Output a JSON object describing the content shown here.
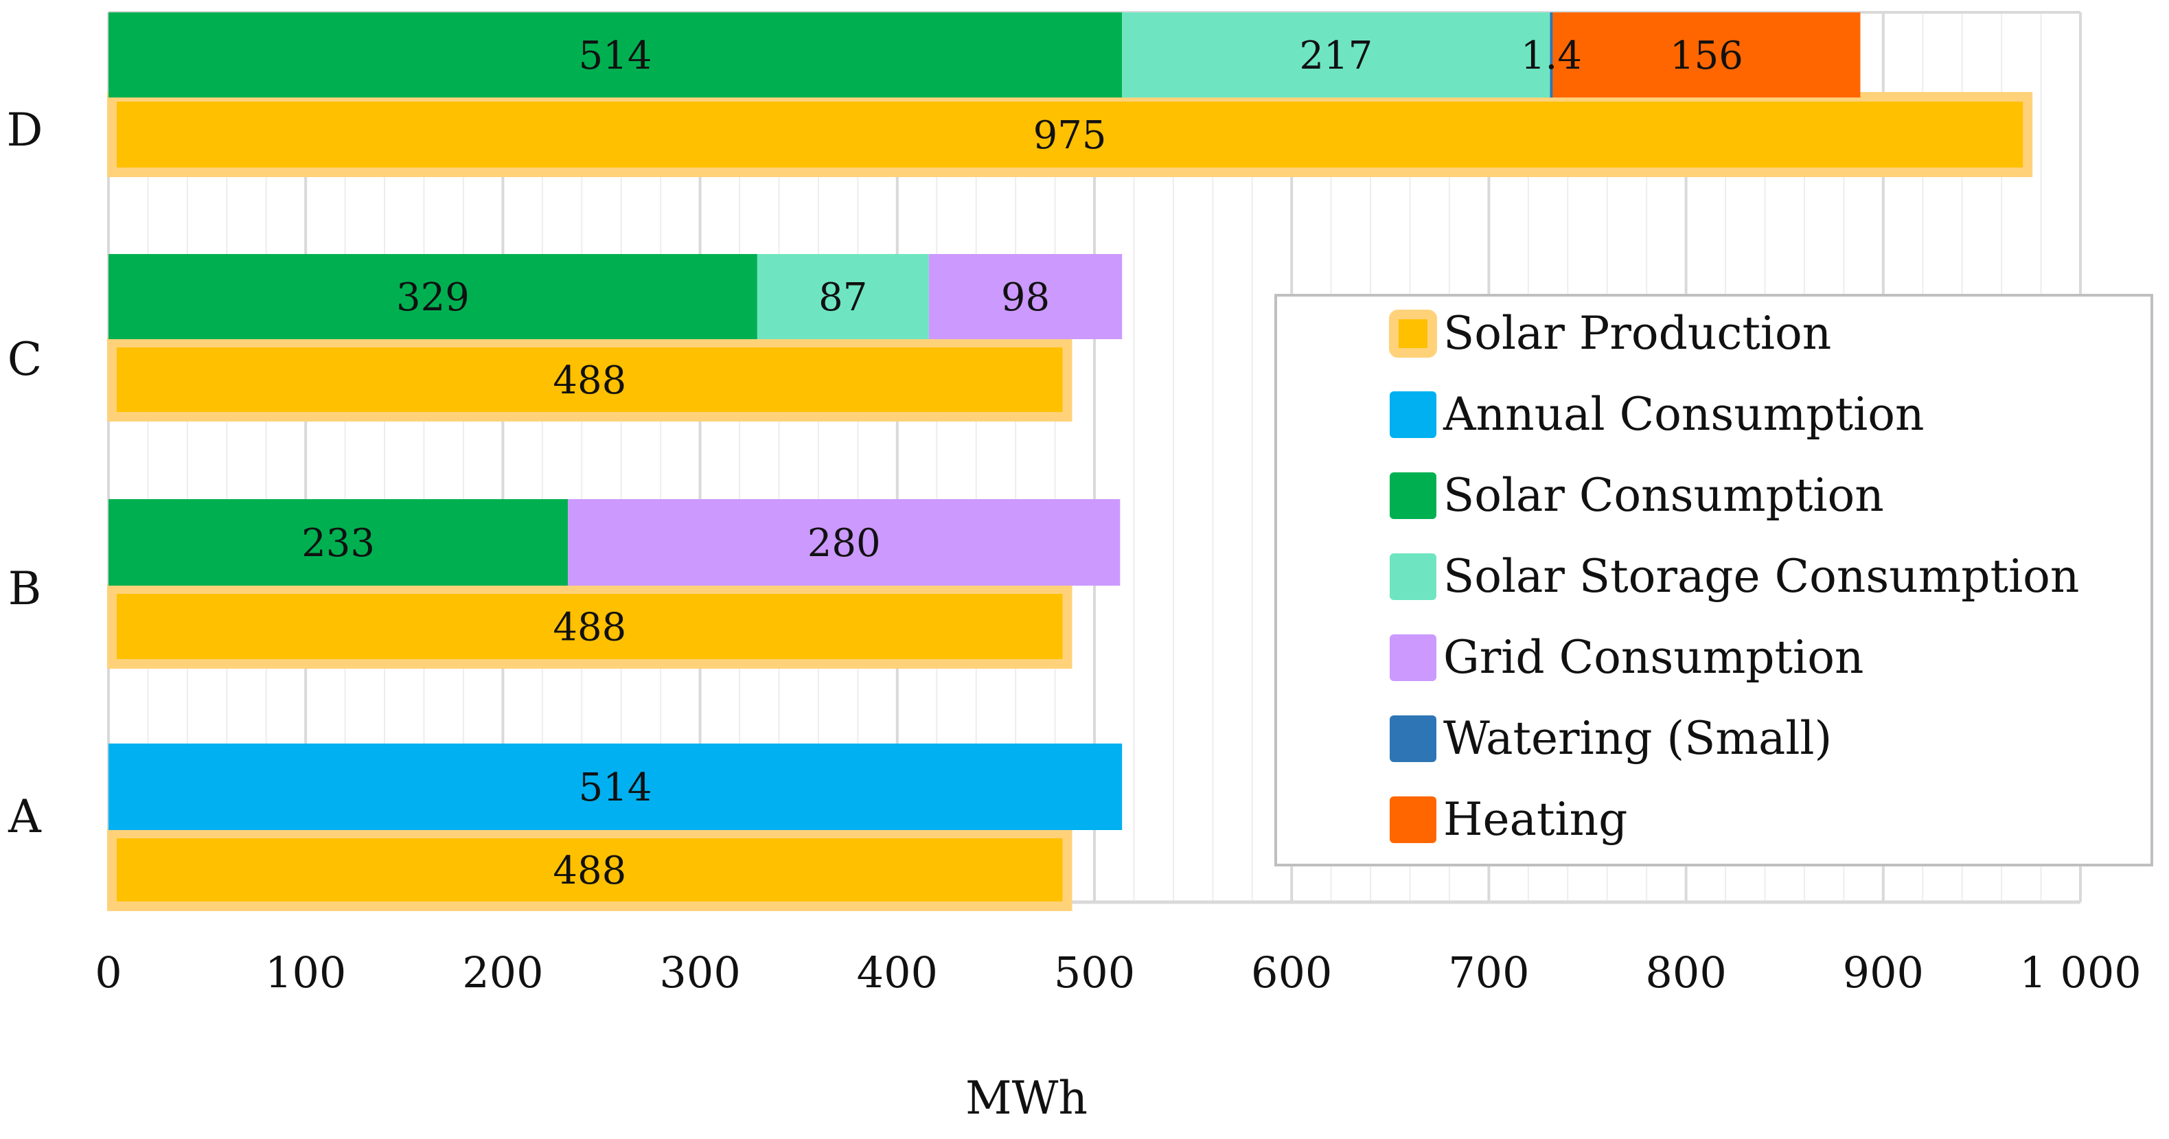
{
  "chart_data": {
    "type": "bar",
    "orientation": "horizontal",
    "stacked": true,
    "title": "",
    "xlabel": "MWh",
    "ylabel": "",
    "xlim": [
      0,
      1000
    ],
    "x_ticks": [
      0,
      100,
      200,
      300,
      400,
      500,
      600,
      700,
      800,
      900,
      1000
    ],
    "x_tick_labels": [
      "0",
      "100",
      "200",
      "300",
      "400",
      "500",
      "600",
      "700",
      "800",
      "900",
      "1 000"
    ],
    "grid": "vertical",
    "legend_position": "right",
    "categories": [
      "D",
      "C",
      "B",
      "A"
    ],
    "rows": [
      {
        "category": "D",
        "production": {
          "series": "Solar Production",
          "value": 975,
          "label": "975"
        },
        "consumption": [
          {
            "series": "Solar Consumption",
            "value": 514,
            "label": "514"
          },
          {
            "series": "Solar Storage Consumption",
            "value": 217,
            "label": "217"
          },
          {
            "series": "Watering (Small)",
            "value": 1.4,
            "label": "1.4"
          },
          {
            "series": "Heating",
            "value": 156,
            "label": "156"
          }
        ]
      },
      {
        "category": "C",
        "production": {
          "series": "Solar Production",
          "value": 488,
          "label": "488"
        },
        "consumption": [
          {
            "series": "Solar Consumption",
            "value": 329,
            "label": "329"
          },
          {
            "series": "Solar Storage Consumption",
            "value": 87,
            "label": "87"
          },
          {
            "series": "Grid Consumption",
            "value": 98,
            "label": "98"
          }
        ]
      },
      {
        "category": "B",
        "production": {
          "series": "Solar Production",
          "value": 488,
          "label": "488"
        },
        "consumption": [
          {
            "series": "Solar Consumption",
            "value": 233,
            "label": "233"
          },
          {
            "series": "Grid Consumption",
            "value": 280,
            "label": "280"
          }
        ]
      },
      {
        "category": "A",
        "production": {
          "series": "Solar Production",
          "value": 488,
          "label": "488"
        },
        "consumption": [
          {
            "series": "Annual Consumption",
            "value": 514,
            "label": "514"
          }
        ]
      }
    ],
    "legend": [
      {
        "name": "Solar Production",
        "color": "#FFC000",
        "border": "#FFD27A"
      },
      {
        "name": "Annual Consumption",
        "color": "#00B0F0"
      },
      {
        "name": "Solar Consumption",
        "color": "#00B050"
      },
      {
        "name": "Solar Storage Consumption",
        "color": "#6EE5C0"
      },
      {
        "name": "Grid Consumption",
        "color": "#CC99FF"
      },
      {
        "name": "Watering (Small)",
        "color": "#2E75B6"
      },
      {
        "name": "Heating",
        "color": "#FF6600"
      }
    ],
    "colors": {
      "Solar Production": "#FFC000",
      "Solar Production Border": "#FFD27A",
      "Annual Consumption": "#00B0F0",
      "Solar Consumption": "#00B050",
      "Solar Storage Consumption": "#6EE5C0",
      "Grid Consumption": "#CC99FF",
      "Watering (Small)": "#2E75B6",
      "Heating": "#FF6600",
      "grid": "#D9D9D9",
      "minor_grid": "#EDEDED",
      "axis": "#D9D9D9",
      "legend_border": "#BFBFBF"
    }
  }
}
